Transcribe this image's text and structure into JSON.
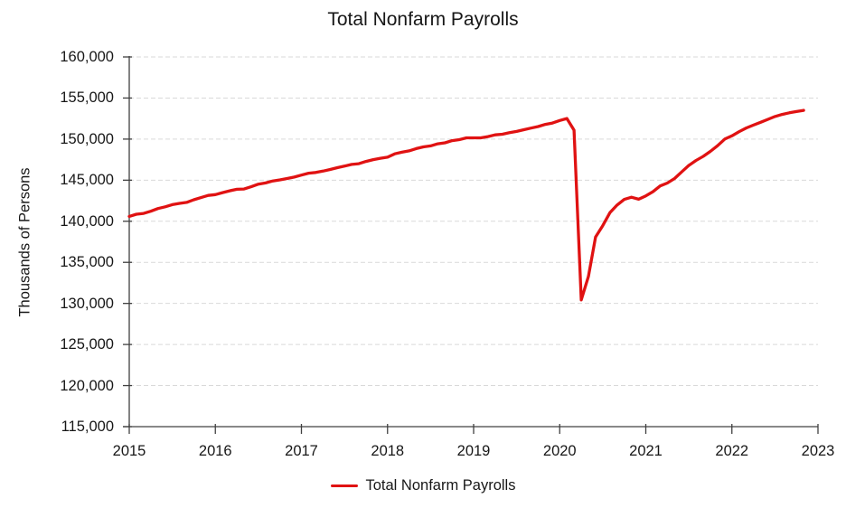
{
  "title": "Total Nonfarm Payrolls",
  "y_axis": {
    "label": "Thousands of Persons",
    "tick_labels": [
      "160,000",
      "155,000",
      "150,000",
      "145,000",
      "140,000",
      "135,000",
      "130,000",
      "125,000",
      "120,000",
      "115,000"
    ],
    "min": 115000,
    "max": 160000,
    "step": 5000
  },
  "x_axis": {
    "tick_labels": [
      "2015",
      "2016",
      "2017",
      "2018",
      "2019",
      "2020",
      "2021",
      "2022",
      "2023"
    ]
  },
  "legend": {
    "label": "Total Nonfarm Payrolls",
    "color": "#e01212"
  },
  "colors": {
    "line": "#e01212",
    "axis": "#404040",
    "grid": "#d9d9d9",
    "text": "#171717",
    "background": "#ffffff"
  },
  "chart_data": {
    "type": "line",
    "title": "Total Nonfarm Payrolls",
    "xlabel": "",
    "ylabel": "Thousands of Persons",
    "ylim": [
      115000,
      160000
    ],
    "y_step": 5000,
    "x_tick_labels": [
      "2015",
      "2016",
      "2017",
      "2018",
      "2019",
      "2020",
      "2021",
      "2022",
      "2023"
    ],
    "x_start": "2015-01",
    "x_end": "2022-11",
    "frequency": "monthly",
    "grid": "horizontal-dashed",
    "legend_position": "bottom",
    "series": [
      {
        "name": "Total Nonfarm Payrolls",
        "color": "#e01212",
        "values": [
          140592,
          140858,
          140951,
          141224,
          141550,
          141755,
          142027,
          142177,
          142297,
          142614,
          142882,
          143144,
          143240,
          143480,
          143705,
          143893,
          143920,
          144203,
          144517,
          144661,
          144910,
          145039,
          145204,
          145377,
          145619,
          145852,
          145937,
          146100,
          146302,
          146527,
          146706,
          146915,
          147007,
          147279,
          147504,
          147669,
          147801,
          148206,
          148404,
          148570,
          148840,
          149048,
          149175,
          149432,
          149543,
          149808,
          149931,
          150158,
          150148,
          150155,
          150302,
          150512,
          150597,
          150775,
          150931,
          151138,
          151346,
          151531,
          151792,
          151952,
          152269,
          152504,
          151090,
          130421,
          133273,
          138067,
          139466,
          141039,
          141982,
          142662,
          142926,
          142687,
          143090,
          143600,
          144300,
          144650,
          145200,
          146000,
          146800,
          147400,
          147900,
          148500,
          149200,
          150000,
          150400,
          150900,
          151350,
          151700,
          152050,
          152400,
          152750,
          153000,
          153200,
          153350,
          153500
        ]
      }
    ]
  }
}
